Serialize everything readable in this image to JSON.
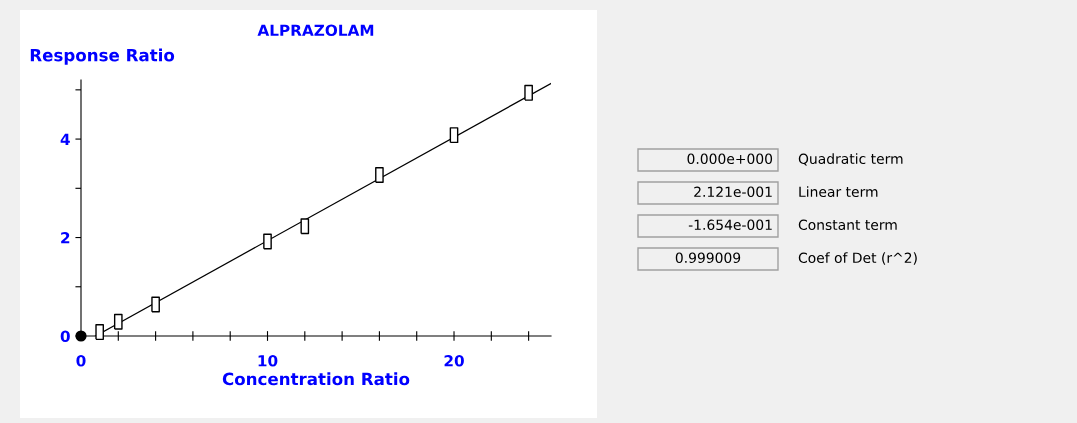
{
  "chart_data": [
    {
      "type": "scatter",
      "title": "ALPRAZOLAM",
      "xlabel": "Concentration Ratio",
      "ylabel": "Response Ratio",
      "xlim": [
        0,
        25.2
      ],
      "ylim": [
        0,
        5.2
      ],
      "xticks": [
        0,
        {
          "value": 2,
          "label": null
        },
        {
          "value": 4,
          "label": null
        },
        {
          "value": 6,
          "label": null
        },
        {
          "value": 8,
          "label": null
        },
        10,
        {
          "value": 12,
          "label": null
        },
        {
          "value": 14,
          "label": null
        },
        {
          "value": 16,
          "label": null
        },
        {
          "value": 18,
          "label": null
        },
        20,
        {
          "value": 22,
          "label": null
        },
        {
          "value": 24,
          "label": null
        }
      ],
      "yticks": [
        0,
        {
          "value": 1,
          "label": null
        },
        2,
        {
          "value": 3,
          "label": null
        },
        4,
        {
          "value": 5,
          "label": null
        }
      ],
      "grid": false,
      "legend": false,
      "series": [
        {
          "type": "line",
          "color": "#000000",
          "marker": "none",
          "line_style": "solid",
          "x": [
            0.78,
            25.2
          ],
          "values": [
            0,
            5.13
          ]
        },
        {
          "type": "scatter",
          "color": "#000000",
          "marker": "square",
          "x": [
            1,
            2,
            4,
            10,
            12,
            16,
            20,
            24
          ],
          "values": [
            0.08,
            0.29,
            0.64,
            1.92,
            2.23,
            3.27,
            4.08,
            4.94
          ]
        },
        {
          "type": "scatter",
          "color": "#000000",
          "marker": "circle",
          "x": [
            0
          ],
          "values": [
            0
          ]
        }
      ]
    },
    {
      "type": "other",
      "annotations": [
        "0.000e+000",
        "Quadratic term",
        "2.121e-001",
        "Linear term",
        "-1.654e-001",
        "Constant term",
        "0.999009",
        "Coef of Det (r^2)"
      ]
    }
  ]
}
